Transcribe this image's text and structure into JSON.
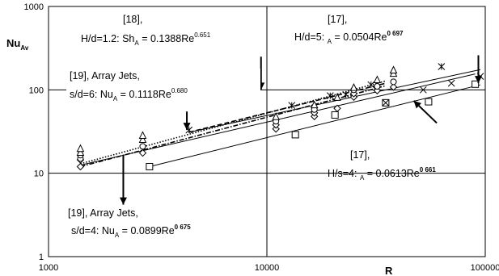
{
  "chart_data": {
    "type": "scatter",
    "xscale": "log",
    "yscale": "log",
    "xlim": [
      1000,
      100000
    ],
    "ylim": [
      1,
      1000
    ],
    "grid": true,
    "ylabel": "Nu",
    "ylabel_sub": "Av",
    "xlabel": "R",
    "xticks": [
      "1000",
      "10000",
      "100000"
    ],
    "yticks": [
      "1",
      "10",
      "100",
      "1000"
    ],
    "series": [
      {
        "marker": "diamond",
        "points": [
          [
            1400,
            12
          ],
          [
            1400,
            14.5
          ],
          [
            2700,
            17.5
          ],
          [
            11000,
            34
          ],
          [
            11000,
            38
          ],
          [
            16500,
            48
          ],
          [
            16500,
            53
          ],
          [
            21000,
            60
          ],
          [
            25000,
            82
          ],
          [
            25000,
            90
          ],
          [
            32000,
            98
          ],
          [
            38000,
            108
          ]
        ]
      },
      {
        "marker": "circle",
        "points": [
          [
            1400,
            15
          ],
          [
            1400,
            16.5
          ],
          [
            2700,
            21
          ],
          [
            11000,
            42
          ],
          [
            16500,
            58
          ],
          [
            25000,
            100
          ],
          [
            32000,
            110
          ],
          [
            38000,
            125
          ]
        ]
      },
      {
        "marker": "triangle",
        "points": [
          [
            1400,
            17.5
          ],
          [
            1400,
            19.5
          ],
          [
            2700,
            25
          ],
          [
            2700,
            28
          ],
          [
            11000,
            47
          ],
          [
            16500,
            65
          ],
          [
            21000,
            80
          ],
          [
            25000,
            105
          ],
          [
            32000,
            130
          ],
          [
            38000,
            155
          ],
          [
            38000,
            170
          ]
        ]
      },
      {
        "marker": "square",
        "points": [
          [
            2900,
            12
          ],
          [
            13500,
            29
          ],
          [
            20500,
            50
          ],
          [
            35000,
            70
          ],
          [
            55000,
            72
          ],
          [
            90000,
            117
          ]
        ]
      },
      {
        "marker": "x",
        "points": [
          [
            35000,
            70
          ],
          [
            52000,
            100
          ],
          [
            70000,
            120
          ],
          [
            95000,
            145
          ]
        ]
      },
      {
        "marker": "asterisk",
        "points": [
          [
            4400,
            33
          ],
          [
            13000,
            65
          ],
          [
            19500,
            85
          ],
          [
            23000,
            88
          ],
          [
            30000,
            115
          ],
          [
            63000,
            190
          ]
        ]
      }
    ],
    "lines": [
      {
        "style": "solid",
        "from": [
          4400,
          31
        ],
        "to": [
          95000,
          175
        ]
      },
      {
        "style": "solid",
        "from": [
          2900,
          12
        ],
        "to": [
          95000,
          115
        ]
      },
      {
        "style": "dashdot",
        "from": [
          1400,
          12
        ],
        "to": [
          35000,
          112
        ]
      },
      {
        "style": "dotted",
        "from": [
          1400,
          13
        ],
        "to": [
          35000,
          128
        ]
      },
      {
        "style": "dashed",
        "from": [
          4400,
          31
        ],
        "to": [
          35000,
          120
        ]
      },
      {
        "style": "solid",
        "from": [
          1400,
          12.5
        ],
        "to": [
          90000,
          155
        ]
      }
    ],
    "arrows": [
      {
        "from": [
          4300,
          33
        ],
        "to": [
          4300,
          55
        ]
      },
      {
        "from": [
          9400,
          100
        ],
        "to": [
          9400,
          250
        ]
      },
      {
        "from": [
          2200,
          4.2
        ],
        "to": [
          2200,
          16.5
        ]
      },
      {
        "from": [
          93000,
          120
        ],
        "to": [
          93000,
          260
        ]
      },
      {
        "from": [
          47000,
          74
        ],
        "to": [
          60000,
          40
        ]
      }
    ],
    "annotations": [
      {
        "line1": "[18],",
        "line2_pre": "H/d=1.2: Sh",
        "line2_sub": "A",
        "line2_mid": " = 0.1388Re",
        "line2_sup": "0.651",
        "sup_bold": false
      },
      {
        "line1": "[17],",
        "line2_pre": "H/d=5:   ",
        "line2_sub": "A",
        "line2_mid": " = 0.0504Re",
        "line2_sup": "0 697",
        "sup_bold": true
      },
      {
        "line1": "[19], Array Jets,",
        "line2_pre": "s/d=6: Nu",
        "line2_sub": "A",
        "line2_mid": " = 0.1118Re",
        "line2_sup": "0.680",
        "sup_bold": false
      },
      {
        "line1": "[17],",
        "line2_pre": "H/s=4:   ",
        "line2_sub": "A",
        "line2_mid": " = 0.0613Re",
        "line2_sup": "0 661",
        "sup_bold": true
      },
      {
        "line1": "[19], Array Jets,",
        "line2_pre": "s/d=4: Nu",
        "line2_sub": "A",
        "line2_mid": " = 0.0899Re",
        "line2_sup": "0 675",
        "sup_bold": true
      }
    ]
  }
}
